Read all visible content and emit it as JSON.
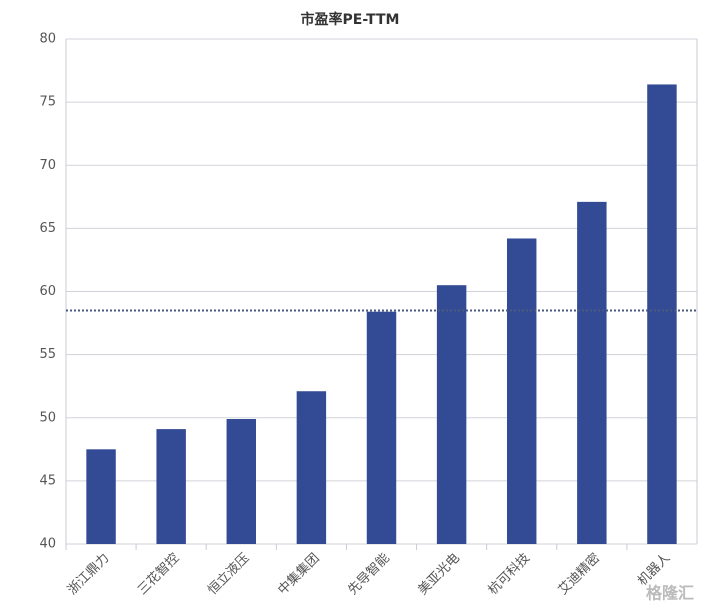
{
  "chart_data": {
    "type": "bar",
    "title": "市盈率PE-TTM",
    "categories": [
      "浙江鼎力",
      "三花智控",
      "恒立液压",
      "中集集团",
      "先导智能",
      "美亚光电",
      "杭可科技",
      "艾迪精密",
      "机器人"
    ],
    "values": [
      47.5,
      49.1,
      49.9,
      52.1,
      58.4,
      60.5,
      64.2,
      67.1,
      76.4
    ],
    "color": "#334a94",
    "reference_line": 58.5,
    "ylim": [
      40,
      80
    ],
    "yticks": [
      40,
      45,
      50,
      55,
      60,
      65,
      70,
      75,
      80
    ],
    "grid": true
  },
  "watermark": "格隆汇"
}
